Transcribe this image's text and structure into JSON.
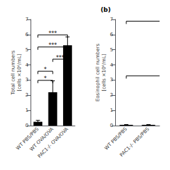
{
  "chart_data": [
    {
      "type": "bar",
      "categories": [
        "WT PBS/PBS",
        "WT OVA/OVA",
        "PAC1-/- OVA/OVA"
      ],
      "values": [
        0.25,
        2.2,
        5.3
      ],
      "errors": [
        0.1,
        0.75,
        0.55
      ],
      "color": "#000000",
      "ylabel": "Total cell numbers\n[cells ×10⁶/mL]",
      "ylim": [
        0,
        7
      ],
      "yticks": [
        0,
        1,
        2,
        3,
        4,
        5,
        6,
        7
      ],
      "grid": false,
      "annotations": [
        {
          "text": "*",
          "from": "WT PBS/PBS",
          "to": "WT OVA/OVA",
          "y": 2.8
        },
        {
          "text": "*",
          "from": "WT PBS/PBS",
          "to": "WT OVA/OVA",
          "y": 3.4
        },
        {
          "text": "***",
          "from": "WT OVA/OVA",
          "to": "PAC1-/- OVA/OVA",
          "y": 4.2
        },
        {
          "text": "***",
          "from": "WT PBS/PBS",
          "to": "PAC1-/- OVA/OVA",
          "y": 5.0
        },
        {
          "text": "***",
          "from": "WT PBS/PBS",
          "to": "PAC1-/- OVA/OVA",
          "y": 5.8
        }
      ]
    },
    {
      "type": "bar",
      "title": "(b)",
      "categories": [
        "WT PBS/PBS",
        "PAC1-/- PBS/PBS"
      ],
      "values": [
        0.05,
        0.05
      ],
      "errors": [
        0.02,
        0.02
      ],
      "color": "#000000",
      "ylabel": "Eosinophil cell numbers\n[cells ×10⁶/mL]",
      "ylim": [
        0,
        7
      ],
      "yticks": [
        0,
        1,
        2,
        3,
        4,
        5,
        6,
        7
      ],
      "grid": false,
      "brackets": [
        {
          "from": "WT PBS/PBS",
          "y": 3.1
        },
        {
          "from": "WT PBS/PBS",
          "y": 6.7
        }
      ]
    }
  ]
}
